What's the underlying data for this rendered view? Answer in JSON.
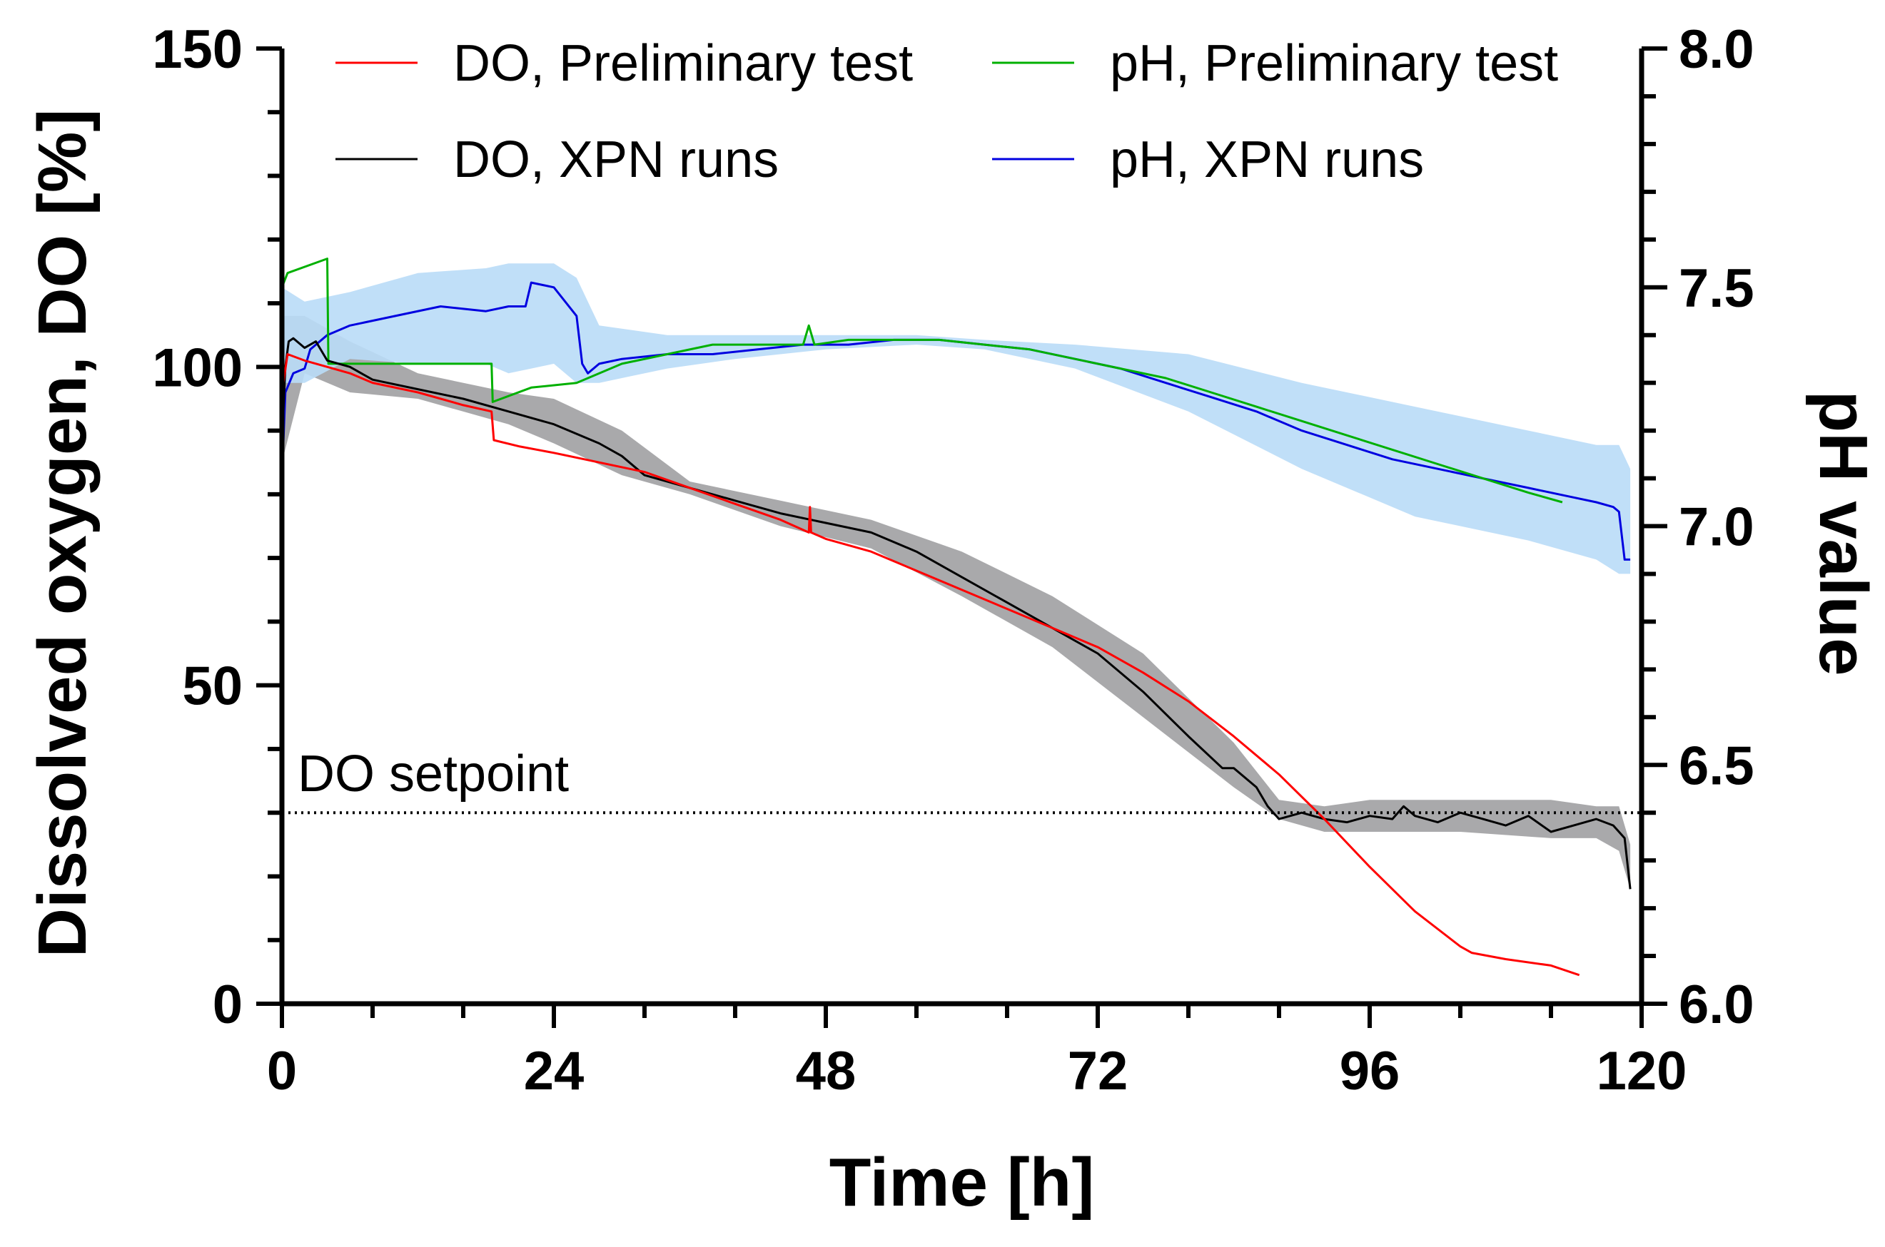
{
  "chart_data": {
    "type": "line",
    "title": "",
    "xlabel": "Time [h]",
    "ylabel_left": "Dissolved oxygen, DO [%]",
    "ylabel_right": "pH value",
    "xlim": [
      0,
      120
    ],
    "ylim_left": [
      0,
      150
    ],
    "ylim_right": [
      6.0,
      8.0
    ],
    "x_ticks": [
      "0",
      "24",
      "48",
      "72",
      "96",
      "120"
    ],
    "y_left_ticks": [
      "0",
      "50",
      "100",
      "150"
    ],
    "y_right_ticks": [
      "6.0",
      "6.5",
      "7.0",
      "7.5",
      "8.0"
    ],
    "grid": false,
    "legend_position": "top",
    "setpoint": {
      "label": "DO setpoint",
      "value": 30
    },
    "colors": {
      "do_preliminary": "#ff0000",
      "do_xpn": "#000000",
      "ph_preliminary": "#00b000",
      "ph_xpn": "#0000e0",
      "do_band": "#9a9a9c",
      "ph_band": "#b9dcf7"
    },
    "series": [
      {
        "name": "DO, Preliminary test",
        "axis": "left",
        "x": [
          0,
          0.5,
          2,
          4,
          6,
          8,
          12,
          16,
          18.5,
          18.7,
          21,
          24,
          28,
          32,
          36,
          40,
          44,
          46.5,
          46.6,
          46.7,
          48,
          52,
          56,
          60,
          64,
          68,
          72,
          76,
          80,
          84,
          88,
          92,
          96,
          100,
          104,
          105,
          108,
          112,
          114.5
        ],
        "y": [
          96,
          102,
          101,
          100,
          99,
          97.5,
          96,
          94,
          93,
          88.5,
          87.5,
          86.5,
          85,
          83.5,
          81,
          78.5,
          76,
          74,
          78,
          74,
          73,
          71,
          68,
          65,
          62,
          59,
          56,
          52,
          47.5,
          42,
          36,
          29,
          21.5,
          14.5,
          9,
          8,
          7,
          6,
          4.5
        ]
      },
      {
        "name": "DO, XPN runs",
        "axis": "left",
        "x": [
          0,
          0.3,
          0.6,
          1,
          2,
          3,
          4,
          6,
          8,
          12,
          16,
          20,
          24,
          28,
          30,
          32,
          36,
          40,
          44,
          48,
          52,
          56,
          60,
          64,
          68,
          72,
          76,
          80,
          83,
          84,
          86,
          87,
          88,
          90,
          92,
          94,
          96,
          98,
          99,
          100,
          102,
          104,
          106,
          108,
          110,
          112,
          114,
          116,
          117.5,
          118.5,
          119
        ],
        "y": [
          88,
          100,
          104,
          104.5,
          103,
          104,
          101,
          100,
          98,
          96.5,
          95,
          93,
          91,
          88,
          86,
          83,
          81,
          79,
          77,
          75.5,
          74,
          71,
          67,
          63,
          59,
          55,
          49,
          42,
          37,
          37,
          34,
          31,
          29,
          30,
          29,
          28.5,
          29.5,
          29,
          31,
          29.5,
          28.5,
          30,
          29,
          28,
          29.5,
          27,
          28,
          29,
          28,
          26,
          18
        ]
      },
      {
        "name": "pH, Preliminary test",
        "axis": "right",
        "x": [
          0,
          0.5,
          4,
          4.1,
          12,
          18.5,
          18.6,
          22,
          26,
          30,
          34,
          38,
          42,
          46,
          46.5,
          47,
          50,
          54,
          58,
          62,
          66,
          70,
          74,
          78,
          82,
          86,
          90,
          94,
          98,
          102,
          106,
          110,
          113
        ],
        "y": [
          7.5,
          7.53,
          7.56,
          7.34,
          7.34,
          7.34,
          7.26,
          7.29,
          7.3,
          7.34,
          7.36,
          7.38,
          7.38,
          7.38,
          7.42,
          7.38,
          7.39,
          7.39,
          7.39,
          7.38,
          7.37,
          7.35,
          7.33,
          7.31,
          7.28,
          7.25,
          7.22,
          7.19,
          7.16,
          7.13,
          7.1,
          7.07,
          7.05
        ]
      },
      {
        "name": "pH, XPN runs",
        "axis": "right",
        "x": [
          0,
          0.3,
          1,
          2,
          2.5,
          4,
          6,
          10,
          14,
          18,
          20,
          21.5,
          22,
          24,
          26,
          26.5,
          27,
          28,
          30,
          34,
          38,
          42,
          46,
          50,
          54,
          58,
          62,
          66,
          70,
          74,
          78,
          82,
          86,
          90,
          94,
          98,
          102,
          106,
          110,
          114,
          116,
          117.5,
          118,
          118.5,
          119
        ],
        "y": [
          7.1,
          7.28,
          7.32,
          7.33,
          7.37,
          7.4,
          7.42,
          7.44,
          7.46,
          7.45,
          7.46,
          7.46,
          7.51,
          7.5,
          7.44,
          7.34,
          7.32,
          7.34,
          7.35,
          7.36,
          7.36,
          7.37,
          7.38,
          7.38,
          7.39,
          7.39,
          7.38,
          7.37,
          7.35,
          7.33,
          7.3,
          7.27,
          7.24,
          7.2,
          7.17,
          7.14,
          7.12,
          7.1,
          7.08,
          7.06,
          7.05,
          7.04,
          7.03,
          6.93,
          6.93
        ]
      }
    ],
    "bands": [
      {
        "name": "DO, XPN runs range",
        "axis": "left",
        "x": [
          0,
          2,
          6,
          12,
          20,
          24,
          30,
          36,
          44,
          52,
          60,
          68,
          76,
          84,
          88,
          92,
          96,
          104,
          112,
          116,
          118,
          119
        ],
        "lower": [
          85,
          99,
          96,
          95,
          91,
          88,
          83,
          80,
          75,
          71.5,
          64,
          56,
          45,
          34,
          29,
          27,
          27,
          27,
          26,
          26,
          24,
          18
        ],
        "upper": [
          108,
          108,
          104,
          99,
          96,
          95,
          90,
          82,
          79,
          76,
          71,
          64,
          55,
          41,
          32,
          31,
          32,
          32,
          32,
          31,
          31,
          25
        ]
      },
      {
        "name": "pH, XPN runs range",
        "axis": "right",
        "x": [
          0,
          2,
          6,
          12,
          18,
          20,
          22,
          24,
          26,
          28,
          34,
          40,
          48,
          56,
          62,
          70,
          80,
          90,
          100,
          110,
          116,
          118,
          119
        ],
        "lower": [
          7.3,
          7.3,
          7.35,
          7.34,
          7.34,
          7.32,
          7.33,
          7.34,
          7.3,
          7.3,
          7.33,
          7.35,
          7.37,
          7.38,
          7.37,
          7.33,
          7.24,
          7.12,
          7.02,
          6.97,
          6.93,
          6.9,
          6.9
        ],
        "upper": [
          7.5,
          7.47,
          7.49,
          7.53,
          7.54,
          7.55,
          7.55,
          7.55,
          7.52,
          7.42,
          7.4,
          7.4,
          7.4,
          7.4,
          7.39,
          7.38,
          7.36,
          7.3,
          7.25,
          7.2,
          7.17,
          7.17,
          7.12
        ]
      }
    ]
  }
}
